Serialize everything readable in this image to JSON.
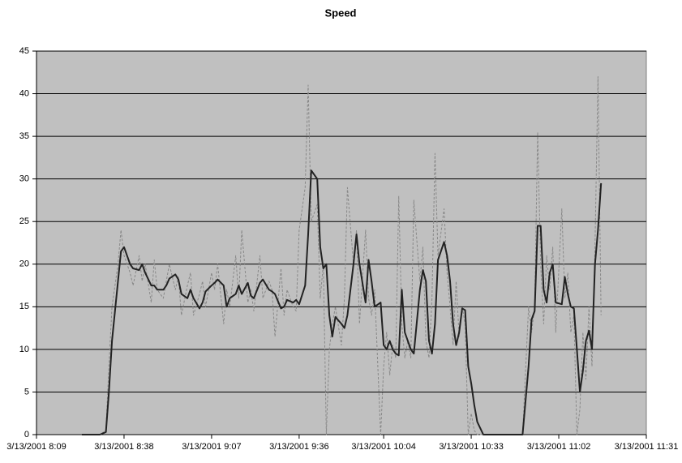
{
  "chart_data": {
    "type": "line",
    "title": "Speed",
    "x": [
      504,
      510,
      512,
      513,
      514,
      516,
      517,
      518,
      520,
      521,
      523,
      524,
      525,
      527,
      528,
      529,
      531,
      532,
      533,
      535,
      536,
      537,
      539,
      540,
      541,
      543,
      544,
      545,
      547,
      548,
      549,
      551,
      552,
      553,
      555,
      556,
      557,
      559,
      560,
      561,
      563,
      564,
      566,
      567,
      568,
      570,
      571,
      572,
      574,
      575,
      576,
      578,
      579,
      580,
      582,
      583,
      584,
      585,
      586,
      587,
      588,
      590,
      591,
      592,
      594,
      595,
      596,
      598,
      599,
      600,
      601,
      603,
      604,
      605,
      606,
      607,
      608,
      609,
      610,
      611,
      612,
      613,
      614,
      616,
      617,
      618,
      619,
      620,
      621,
      622,
      624,
      625,
      626,
      627,
      628,
      629,
      630,
      631,
      632,
      633,
      634,
      635,
      637,
      650,
      652,
      653,
      654,
      655,
      656,
      657,
      658,
      659,
      660,
      661,
      663,
      664,
      665,
      666,
      667,
      668,
      669,
      670,
      671,
      672,
      673,
      674,
      675,
      676
    ],
    "series": [
      {
        "color": "#888888",
        "style": "dashed",
        "values": [
          0,
          0,
          0.5,
          8,
          15,
          20,
          24,
          21,
          19,
          17.5,
          21,
          18,
          20,
          15.5,
          20.5,
          17,
          16,
          18,
          20,
          17,
          18.5,
          14,
          17.5,
          19,
          14,
          16.5,
          18,
          15,
          19,
          17,
          20,
          13,
          17,
          15,
          21,
          16,
          24,
          15.5,
          17,
          14.5,
          21,
          16,
          18,
          17,
          11.5,
          19.5,
          14,
          17,
          15,
          14.5,
          24,
          29,
          41,
          25,
          27,
          16,
          20,
          0,
          10,
          13,
          15,
          10.5,
          16,
          29,
          20,
          24,
          13,
          24,
          16,
          14,
          17,
          0,
          8,
          12,
          7,
          10.5,
          9,
          28,
          13,
          9,
          11,
          9,
          27.5,
          18,
          22,
          11,
          9,
          16,
          33,
          21,
          26.5,
          19,
          15,
          10.5,
          18,
          11.5,
          15,
          13,
          0,
          2.5,
          0.5,
          0,
          0,
          0,
          15,
          12,
          15,
          35.5,
          20,
          13,
          21,
          17,
          22,
          12,
          26.5,
          16,
          19,
          12,
          14,
          0,
          3,
          12,
          6.5,
          15,
          8,
          22,
          42,
          14
        ]
      },
      {
        "color": "#222222",
        "style": "solid",
        "values": [
          0,
          0,
          0.3,
          5,
          11,
          18,
          21.5,
          22,
          20,
          19.5,
          19.3,
          20,
          19,
          17.5,
          17.5,
          17,
          17,
          17.5,
          18.3,
          18.8,
          18.2,
          16.5,
          16,
          17,
          16,
          14.8,
          15.5,
          16.8,
          17.5,
          17.8,
          18.2,
          17.5,
          15,
          16,
          16.5,
          17.5,
          16.5,
          17.8,
          16.3,
          16,
          17.8,
          18.2,
          17,
          16.8,
          16.5,
          14.8,
          15,
          15.8,
          15.5,
          15.8,
          15.3,
          17.5,
          23.5,
          31,
          30,
          22,
          19.5,
          20,
          14,
          11.5,
          13.8,
          13,
          12.5,
          14,
          20,
          23.5,
          20,
          15.5,
          20.5,
          18,
          15,
          15.5,
          10.5,
          10,
          11,
          10,
          9.5,
          9.3,
          17,
          12,
          11,
          10,
          9.5,
          17,
          19.3,
          18,
          11,
          9.5,
          13,
          20.5,
          22.6,
          21,
          18,
          13,
          10.5,
          12,
          14.8,
          14.6,
          8,
          6,
          3.5,
          1.5,
          0,
          0,
          8,
          13.5,
          14.5,
          24.5,
          24.5,
          17,
          15.5,
          19,
          20,
          15.5,
          15.3,
          18.5,
          16.5,
          15,
          14.8,
          10,
          5,
          7.5,
          11,
          12.2,
          10,
          20,
          24,
          29.5
        ]
      }
    ],
    "xlim": [
      489,
      691
    ],
    "xticks": [
      {
        "value": 489,
        "label": "3/13/2001 8:09"
      },
      {
        "value": 518,
        "label": "3/13/2001 8:38"
      },
      {
        "value": 547,
        "label": "3/13/2001 9:07"
      },
      {
        "value": 576,
        "label": "3/13/2001 9:36"
      },
      {
        "value": 604,
        "label": "3/13/2001 10:04"
      },
      {
        "value": 633,
        "label": "3/13/2001 10:33"
      },
      {
        "value": 662,
        "label": "3/13/2001 11:02"
      },
      {
        "value": 691,
        "label": "3/13/2001 11:31"
      }
    ],
    "ylim": [
      0,
      45
    ],
    "yticks": [
      0,
      5,
      10,
      15,
      20,
      25,
      30,
      35,
      40,
      45
    ],
    "grid": true
  }
}
